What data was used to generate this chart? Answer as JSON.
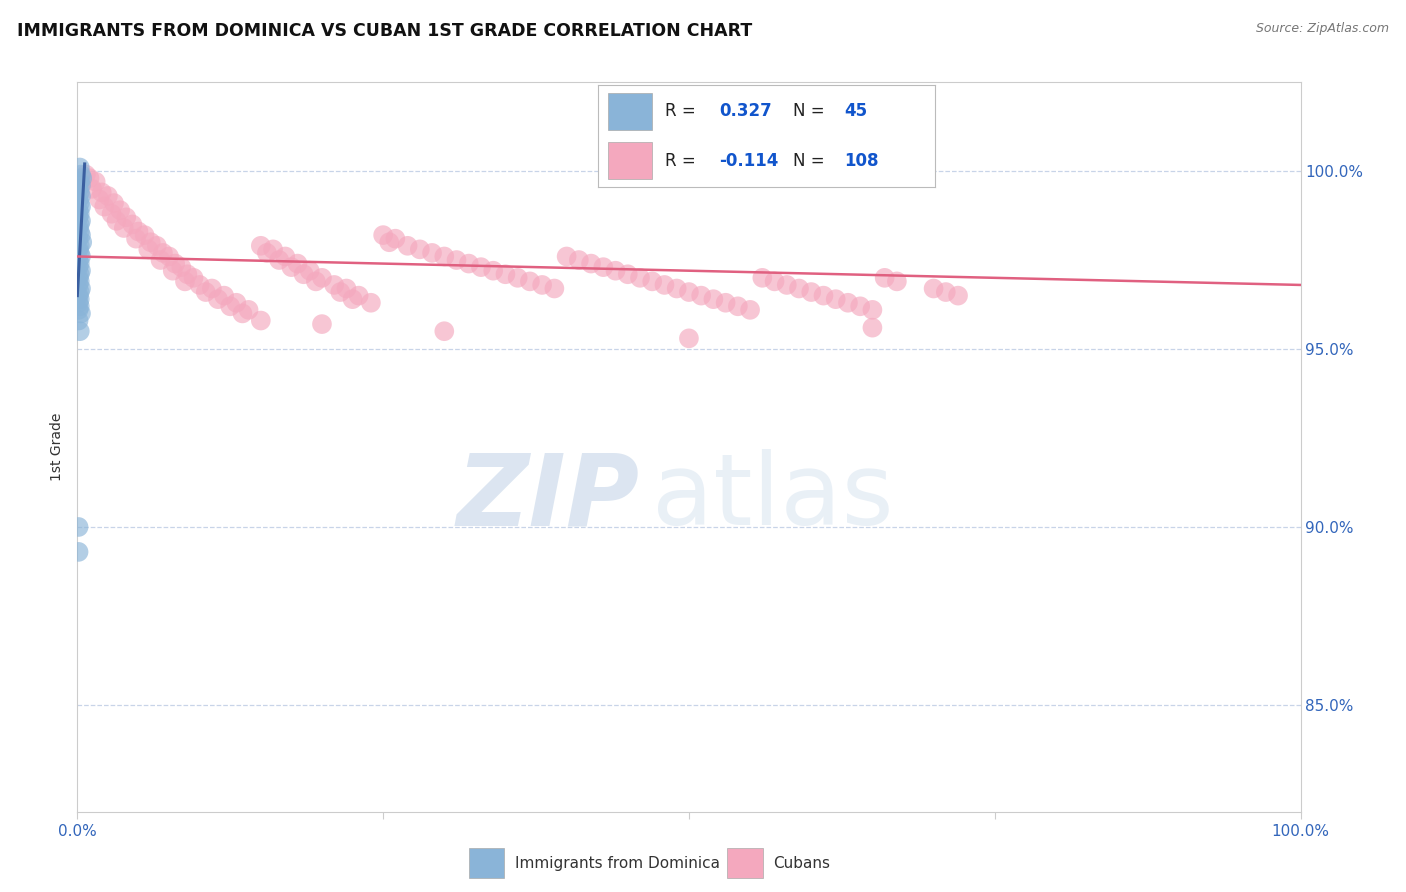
{
  "title": "IMMIGRANTS FROM DOMINICA VS CUBAN 1ST GRADE CORRELATION CHART",
  "source": "Source: ZipAtlas.com",
  "ylabel": "1st Grade",
  "ytick_labels": [
    "100.0%",
    "95.0%",
    "90.0%",
    "85.0%"
  ],
  "ytick_positions": [
    1.0,
    0.95,
    0.9,
    0.85
  ],
  "blue_color": "#8ab4d8",
  "pink_color": "#f4a8be",
  "blue_line_color": "#3a5fa0",
  "pink_line_color": "#e06080",
  "background_color": "#ffffff",
  "grid_color": "#c8d4e8",
  "r_blue": 0.327,
  "n_blue": 45,
  "r_pink": -0.114,
  "n_pink": 108,
  "xlim": [
    0.0,
    1.0
  ],
  "ylim": [
    0.82,
    1.025
  ],
  "dominica_points": [
    [
      0.002,
      1.001
    ],
    [
      0.003,
      0.999
    ],
    [
      0.004,
      0.998
    ],
    [
      0.002,
      0.997
    ],
    [
      0.003,
      0.996
    ],
    [
      0.001,
      0.995
    ],
    [
      0.002,
      0.994
    ],
    [
      0.003,
      0.993
    ],
    [
      0.001,
      0.992
    ],
    [
      0.002,
      0.991
    ],
    [
      0.003,
      0.99
    ],
    [
      0.001,
      0.989
    ],
    [
      0.002,
      0.988
    ],
    [
      0.001,
      0.987
    ],
    [
      0.003,
      0.986
    ],
    [
      0.002,
      0.985
    ],
    [
      0.001,
      0.984
    ],
    [
      0.002,
      0.983
    ],
    [
      0.003,
      0.982
    ],
    [
      0.001,
      0.981
    ],
    [
      0.004,
      0.98
    ],
    [
      0.002,
      0.979
    ],
    [
      0.001,
      0.978
    ],
    [
      0.002,
      0.977
    ],
    [
      0.003,
      0.976
    ],
    [
      0.001,
      0.975
    ],
    [
      0.002,
      0.974
    ],
    [
      0.001,
      0.973
    ],
    [
      0.003,
      0.972
    ],
    [
      0.002,
      0.971
    ],
    [
      0.001,
      0.97
    ],
    [
      0.002,
      0.969
    ],
    [
      0.001,
      0.968
    ],
    [
      0.003,
      0.967
    ],
    [
      0.002,
      0.966
    ],
    [
      0.001,
      0.965
    ],
    [
      0.002,
      0.964
    ],
    [
      0.001,
      0.963
    ],
    [
      0.002,
      0.962
    ],
    [
      0.001,
      0.961
    ],
    [
      0.003,
      0.96
    ],
    [
      0.001,
      0.958
    ],
    [
      0.002,
      0.955
    ],
    [
      0.001,
      0.9
    ],
    [
      0.001,
      0.893
    ]
  ],
  "cuban_points": [
    [
      0.007,
      0.999
    ],
    [
      0.01,
      0.998
    ],
    [
      0.015,
      0.997
    ],
    [
      0.012,
      0.995
    ],
    [
      0.02,
      0.994
    ],
    [
      0.025,
      0.993
    ],
    [
      0.018,
      0.992
    ],
    [
      0.03,
      0.991
    ],
    [
      0.022,
      0.99
    ],
    [
      0.035,
      0.989
    ],
    [
      0.028,
      0.988
    ],
    [
      0.04,
      0.987
    ],
    [
      0.032,
      0.986
    ],
    [
      0.045,
      0.985
    ],
    [
      0.038,
      0.984
    ],
    [
      0.05,
      0.983
    ],
    [
      0.055,
      0.982
    ],
    [
      0.048,
      0.981
    ],
    [
      0.06,
      0.98
    ],
    [
      0.065,
      0.979
    ],
    [
      0.058,
      0.978
    ],
    [
      0.07,
      0.977
    ],
    [
      0.075,
      0.976
    ],
    [
      0.068,
      0.975
    ],
    [
      0.08,
      0.974
    ],
    [
      0.085,
      0.973
    ],
    [
      0.078,
      0.972
    ],
    [
      0.09,
      0.971
    ],
    [
      0.095,
      0.97
    ],
    [
      0.088,
      0.969
    ],
    [
      0.1,
      0.968
    ],
    [
      0.11,
      0.967
    ],
    [
      0.105,
      0.966
    ],
    [
      0.12,
      0.965
    ],
    [
      0.115,
      0.964
    ],
    [
      0.13,
      0.963
    ],
    [
      0.125,
      0.962
    ],
    [
      0.14,
      0.961
    ],
    [
      0.135,
      0.96
    ],
    [
      0.15,
      0.979
    ],
    [
      0.16,
      0.978
    ],
    [
      0.155,
      0.977
    ],
    [
      0.17,
      0.976
    ],
    [
      0.165,
      0.975
    ],
    [
      0.18,
      0.974
    ],
    [
      0.175,
      0.973
    ],
    [
      0.19,
      0.972
    ],
    [
      0.185,
      0.971
    ],
    [
      0.2,
      0.97
    ],
    [
      0.195,
      0.969
    ],
    [
      0.21,
      0.968
    ],
    [
      0.22,
      0.967
    ],
    [
      0.215,
      0.966
    ],
    [
      0.23,
      0.965
    ],
    [
      0.225,
      0.964
    ],
    [
      0.24,
      0.963
    ],
    [
      0.25,
      0.982
    ],
    [
      0.26,
      0.981
    ],
    [
      0.255,
      0.98
    ],
    [
      0.27,
      0.979
    ],
    [
      0.28,
      0.978
    ],
    [
      0.29,
      0.977
    ],
    [
      0.3,
      0.976
    ],
    [
      0.31,
      0.975
    ],
    [
      0.32,
      0.974
    ],
    [
      0.33,
      0.973
    ],
    [
      0.34,
      0.972
    ],
    [
      0.35,
      0.971
    ],
    [
      0.36,
      0.97
    ],
    [
      0.37,
      0.969
    ],
    [
      0.38,
      0.968
    ],
    [
      0.39,
      0.967
    ],
    [
      0.4,
      0.976
    ],
    [
      0.41,
      0.975
    ],
    [
      0.42,
      0.974
    ],
    [
      0.43,
      0.973
    ],
    [
      0.44,
      0.972
    ],
    [
      0.45,
      0.971
    ],
    [
      0.46,
      0.97
    ],
    [
      0.47,
      0.969
    ],
    [
      0.48,
      0.968
    ],
    [
      0.49,
      0.967
    ],
    [
      0.5,
      0.966
    ],
    [
      0.51,
      0.965
    ],
    [
      0.52,
      0.964
    ],
    [
      0.53,
      0.963
    ],
    [
      0.54,
      0.962
    ],
    [
      0.55,
      0.961
    ],
    [
      0.56,
      0.97
    ],
    [
      0.57,
      0.969
    ],
    [
      0.58,
      0.968
    ],
    [
      0.59,
      0.967
    ],
    [
      0.6,
      0.966
    ],
    [
      0.61,
      0.965
    ],
    [
      0.62,
      0.964
    ],
    [
      0.63,
      0.963
    ],
    [
      0.64,
      0.962
    ],
    [
      0.65,
      0.961
    ],
    [
      0.66,
      0.97
    ],
    [
      0.67,
      0.969
    ],
    [
      0.15,
      0.958
    ],
    [
      0.2,
      0.957
    ],
    [
      0.3,
      0.955
    ],
    [
      0.5,
      0.953
    ],
    [
      0.65,
      0.956
    ],
    [
      0.7,
      0.967
    ],
    [
      0.71,
      0.966
    ],
    [
      0.72,
      0.965
    ]
  ]
}
